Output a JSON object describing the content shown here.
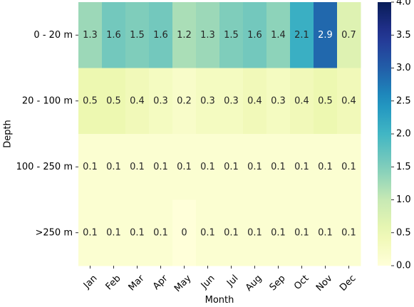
{
  "chart_data": {
    "type": "heatmap",
    "xlabel": "Month",
    "ylabel": "Depth",
    "x_categories": [
      "Jan",
      "Feb",
      "Mar",
      "Apr",
      "May",
      "Jun",
      "Jul",
      "Aug",
      "Sep",
      "Oct",
      "Nov",
      "Dec"
    ],
    "y_categories": [
      "0 - 20 m",
      "20 - 100 m",
      "100 - 250 m",
      ">250 m"
    ],
    "values": [
      [
        1.3,
        1.6,
        1.5,
        1.6,
        1.2,
        1.3,
        1.5,
        1.6,
        1.4,
        2.1,
        2.9,
        0.7
      ],
      [
        0.5,
        0.5,
        0.4,
        0.3,
        0.2,
        0.3,
        0.3,
        0.4,
        0.3,
        0.4,
        0.5,
        0.4
      ],
      [
        0.1,
        0.1,
        0.1,
        0.1,
        0.1,
        0.1,
        0.1,
        0.1,
        0.1,
        0.1,
        0.1,
        0.1
      ],
      [
        0.1,
        0.1,
        0.1,
        0.1,
        0,
        0.1,
        0.1,
        0.1,
        0.1,
        0.1,
        0.1,
        0.1
      ]
    ],
    "value_labels": [
      [
        "1.3",
        "1.6",
        "1.5",
        "1.6",
        "1.2",
        "1.3",
        "1.5",
        "1.6",
        "1.4",
        "2.1",
        "2.9",
        "0.7"
      ],
      [
        "0.5",
        "0.5",
        "0.4",
        "0.3",
        "0.2",
        "0.3",
        "0.3",
        "0.4",
        "0.3",
        "0.4",
        "0.5",
        "0.4"
      ],
      [
        "0.1",
        "0.1",
        "0.1",
        "0.1",
        "0.1",
        "0.1",
        "0.1",
        "0.1",
        "0.1",
        "0.1",
        "0.1",
        "0.1"
      ],
      [
        "0.1",
        "0.1",
        "0.1",
        "0.1",
        "0",
        "0.1",
        "0.1",
        "0.1",
        "0.1",
        "0.1",
        "0.1",
        "0.1"
      ]
    ],
    "colorbar": {
      "vmin": 0,
      "vmax": 4,
      "ticks": [
        "0.0",
        "0.5",
        "1.0",
        "1.5",
        "2.0",
        "2.5",
        "3.0",
        "3.5",
        "4.0"
      ],
      "colormap": "YlGnBu"
    }
  }
}
